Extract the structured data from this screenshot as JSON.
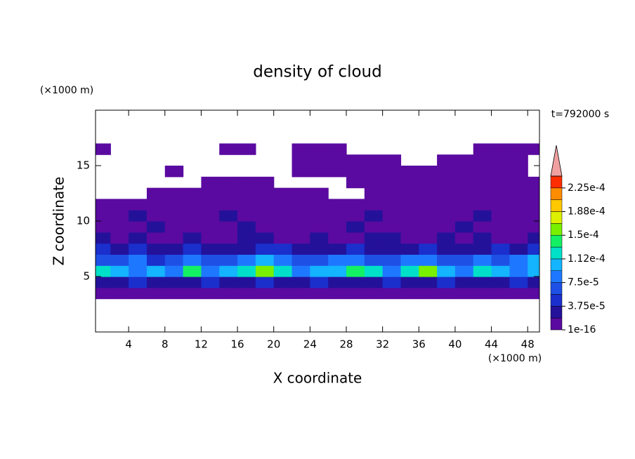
{
  "chart_data": {
    "type": "contour",
    "title": "density of cloud",
    "x_label": "X coordinate",
    "y_label": "Z coordinate",
    "x_unit": "(×1000 m)",
    "y_unit": "(×1000 m)",
    "time_label": "t=792000 s",
    "xlim": [
      0.35,
      49.3
    ],
    "ylim": [
      0,
      20
    ],
    "xticks": [
      4,
      8,
      12,
      16,
      20,
      24,
      28,
      32,
      36,
      40,
      44,
      48
    ],
    "yticks": [
      5,
      10,
      15
    ],
    "x": [
      1,
      3,
      5,
      7,
      9,
      11,
      13,
      15,
      17,
      19,
      21,
      23,
      25,
      27,
      29,
      31,
      33,
      35,
      37,
      39,
      41,
      43,
      45,
      47,
      49
    ],
    "z": [
      0.5,
      1.5,
      2.5,
      3.5,
      4.5,
      5.5,
      6.5,
      7.5,
      8.5,
      9.5,
      10.5,
      11.5,
      12.5,
      13.5,
      14.5,
      15.5,
      16.5,
      17.5,
      18.5,
      19.5
    ],
    "values": [
      [
        0,
        0,
        0,
        0,
        0,
        0,
        0,
        0,
        0,
        0,
        0,
        0,
        0,
        0,
        0,
        0,
        0,
        0,
        0,
        0,
        0,
        0,
        0,
        0,
        0
      ],
      [
        0,
        0,
        0,
        0,
        0,
        0,
        0,
        0,
        0,
        0,
        0,
        0,
        0,
        0,
        0,
        0,
        0,
        0,
        0,
        0,
        0,
        0,
        0,
        0,
        0
      ],
      [
        0,
        0,
        0,
        0,
        0,
        0,
        0,
        0,
        0,
        0,
        0,
        0,
        0,
        0,
        0,
        0,
        0,
        0,
        0,
        0,
        0,
        0,
        0,
        0,
        0
      ],
      [
        1e-06,
        1e-06,
        1e-06,
        1e-06,
        1e-06,
        1e-06,
        1e-06,
        1e-06,
        1e-06,
        1e-06,
        1e-06,
        1e-06,
        1e-06,
        1e-06,
        1e-06,
        1e-06,
        1e-06,
        1e-06,
        1e-06,
        1e-06,
        1e-06,
        1e-06,
        1e-06,
        1e-06,
        1e-06
      ],
      [
        3e-05,
        2e-05,
        4e-05,
        3e-05,
        2e-05,
        3e-05,
        4e-05,
        3e-05,
        2e-05,
        5e-05,
        3e-05,
        2e-05,
        4e-05,
        3e-05,
        2e-05,
        3e-05,
        4e-05,
        2e-05,
        3e-05,
        5e-05,
        3e-05,
        2e-05,
        3e-05,
        4e-05,
        3e-05
      ],
      [
        0.00012,
        0.0001,
        9e-05,
        0.00011,
        8e-05,
        0.00014,
        9e-05,
        0.0001,
        0.00012,
        0.00015,
        0.00013,
        9e-05,
        0.00011,
        0.0001,
        0.00014,
        0.00012,
        9e-05,
        0.00013,
        0.00016,
        0.00011,
        8e-05,
        0.00012,
        0.0001,
        9e-05,
        0.00011
      ],
      [
        7e-05,
        6e-05,
        8e-05,
        5e-05,
        7e-05,
        9e-05,
        6e-05,
        7e-05,
        8e-05,
        0.0001,
        9e-05,
        7e-05,
        6e-05,
        8e-05,
        9e-05,
        7e-05,
        6e-05,
        8e-05,
        9e-05,
        7e-05,
        6e-05,
        8e-05,
        7e-05,
        9e-05,
        0.00011
      ],
      [
        4e-05,
        3e-05,
        4e-05,
        3e-05,
        2e-05,
        4e-05,
        3e-05,
        2e-05,
        3e-05,
        4e-05,
        5e-05,
        3e-05,
        2e-05,
        3e-05,
        4e-05,
        3e-05,
        2e-05,
        3e-05,
        4e-05,
        3e-05,
        2e-05,
        3e-05,
        4e-05,
        3e-05,
        4e-05
      ],
      [
        2e-05,
        1.5e-05,
        2e-05,
        1e-05,
        1.5e-05,
        2e-05,
        1e-05,
        1.5e-05,
        2e-05,
        2.5e-05,
        1.5e-05,
        1e-05,
        2e-05,
        1.5e-05,
        1e-05,
        2e-05,
        2.5e-05,
        1.5e-05,
        1e-05,
        2e-05,
        1.5e-05,
        2e-05,
        1e-05,
        1.5e-05,
        2e-05
      ],
      [
        5e-06,
        1e-05,
        5e-06,
        2e-05,
        5e-06,
        1e-05,
        5e-06,
        5e-06,
        2e-05,
        1e-05,
        5e-06,
        5e-06,
        1e-05,
        5e-06,
        2e-05,
        5e-06,
        1e-05,
        5e-06,
        5e-06,
        1e-05,
        2e-05,
        5e-06,
        5e-06,
        1e-05,
        5e-06
      ],
      [
        5e-06,
        5e-06,
        2e-05,
        5e-06,
        5e-06,
        5e-06,
        5e-06,
        2e-05,
        5e-06,
        5e-06,
        5e-06,
        5e-06,
        5e-06,
        5e-06,
        5e-06,
        2e-05,
        5e-06,
        5e-06,
        5e-06,
        5e-06,
        5e-06,
        2e-05,
        5e-06,
        5e-06,
        5e-06
      ],
      [
        5e-06,
        5e-06,
        5e-06,
        5e-06,
        5e-06,
        5e-06,
        5e-06,
        5e-06,
        5e-06,
        5e-06,
        5e-06,
        5e-06,
        5e-06,
        5e-06,
        5e-06,
        5e-06,
        5e-06,
        5e-06,
        5e-06,
        5e-06,
        5e-06,
        5e-06,
        5e-06,
        5e-06,
        5e-06
      ],
      [
        0,
        0,
        0,
        5e-06,
        5e-06,
        5e-06,
        5e-06,
        5e-06,
        5e-06,
        5e-06,
        5e-06,
        5e-06,
        5e-06,
        0,
        0,
        5e-06,
        5e-06,
        5e-06,
        5e-06,
        5e-06,
        5e-06,
        5e-06,
        5e-06,
        5e-06,
        5e-06
      ],
      [
        0,
        0,
        0,
        0,
        0,
        0,
        5e-06,
        5e-06,
        5e-06,
        5e-06,
        0,
        0,
        0,
        0,
        5e-06,
        5e-06,
        5e-06,
        5e-06,
        5e-06,
        5e-06,
        5e-06,
        5e-06,
        5e-06,
        5e-06,
        5e-06
      ],
      [
        0,
        0,
        0,
        0,
        5e-06,
        0,
        0,
        0,
        0,
        0,
        0,
        5e-06,
        5e-06,
        5e-06,
        5e-06,
        5e-06,
        5e-06,
        5e-06,
        5e-06,
        5e-06,
        5e-06,
        5e-06,
        5e-06,
        5e-06,
        0
      ],
      [
        0,
        0,
        0,
        0,
        0,
        0,
        0,
        0,
        0,
        0,
        0,
        5e-06,
        5e-06,
        5e-06,
        5e-06,
        5e-06,
        5e-06,
        0,
        0,
        5e-06,
        5e-06,
        5e-06,
        5e-06,
        5e-06,
        0
      ],
      [
        5e-06,
        0,
        0,
        0,
        0,
        0,
        0,
        5e-06,
        5e-06,
        0,
        0,
        5e-06,
        5e-06,
        5e-06,
        0,
        0,
        0,
        0,
        0,
        0,
        0,
        5e-06,
        5e-06,
        5e-06,
        5e-06
      ],
      [
        0,
        0,
        0,
        0,
        0,
        0,
        0,
        0,
        0,
        0,
        0,
        0,
        0,
        0,
        0,
        0,
        0,
        0,
        0,
        0,
        0,
        0,
        0,
        0,
        0
      ],
      [
        0,
        0,
        0,
        0,
        0,
        0,
        0,
        0,
        0,
        0,
        0,
        0,
        0,
        0,
        0,
        0,
        0,
        0,
        0,
        0,
        0,
        0,
        0,
        0,
        0
      ],
      [
        0,
        0,
        0,
        0,
        0,
        0,
        0,
        0,
        0,
        0,
        0,
        0,
        0,
        0,
        0,
        0,
        0,
        0,
        0,
        0,
        0,
        0,
        0,
        0,
        0
      ]
    ],
    "levels": [
      1e-16,
      1.875e-05,
      3.75e-05,
      5.625e-05,
      7.5e-05,
      9.375e-05,
      0.0001125,
      0.00013125,
      0.00015,
      0.00016875,
      0.0001875,
      0.00020625,
      0.000225,
      0.00024375
    ],
    "colors": [
      "#5a0aa0",
      "#24119a",
      "#1a2fcc",
      "#1e50e6",
      "#1e78ff",
      "#14b4ff",
      "#00e0c8",
      "#14f064",
      "#78f000",
      "#dcf000",
      "#ffc800",
      "#ff8c00",
      "#ff2d00"
    ],
    "over_color": "#f0a0a0",
    "colorbar_ticks": [
      {
        "value": 1e-16,
        "label": "1e-16"
      },
      {
        "value": 3.75e-05,
        "label": "3.75e-5"
      },
      {
        "value": 7.5e-05,
        "label": "7.5e-5"
      },
      {
        "value": 0.0001125,
        "label": "1.12e-4"
      },
      {
        "value": 0.00015,
        "label": "1.5e-4"
      },
      {
        "value": 0.0001875,
        "label": "1.88e-4"
      },
      {
        "value": 0.000225,
        "label": "2.25e-4"
      }
    ]
  }
}
